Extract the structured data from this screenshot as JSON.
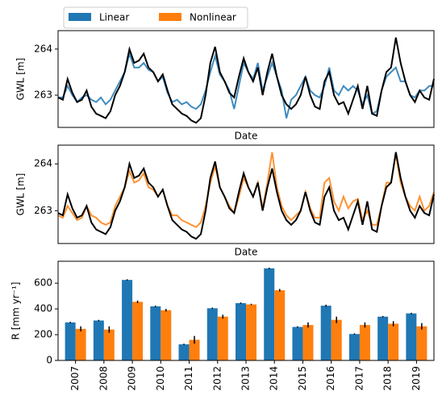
{
  "chart_data": [
    {
      "type": "line",
      "xlabel": "Date",
      "ylabel": "GWL [m]",
      "ylim": [
        262.3,
        264.4
      ],
      "yticks": [
        263,
        264
      ],
      "series": [
        {
          "color": "#1f77b4",
          "values": [
            262.95,
            262.95,
            263.2,
            263.0,
            262.85,
            262.95,
            263.0,
            262.9,
            262.85,
            262.95,
            262.8,
            262.9,
            263.1,
            263.3,
            263.5,
            263.9,
            263.6,
            263.6,
            263.7,
            263.55,
            263.5,
            263.3,
            263.4,
            263.05,
            262.85,
            262.9,
            262.8,
            262.85,
            262.75,
            262.7,
            262.8,
            263.1,
            263.5,
            263.85,
            263.45,
            263.3,
            263.1,
            262.7,
            263.2,
            263.7,
            263.5,
            263.35,
            263.7,
            263.1,
            263.4,
            263.7,
            263.4,
            263.1,
            262.5,
            262.9,
            263.0,
            263.2,
            263.4,
            263.1,
            263.0,
            262.95,
            263.2,
            263.6,
            263.1,
            263.0,
            263.2,
            263.1,
            263.2,
            263.1,
            262.8,
            263.0,
            262.6,
            262.65,
            263.1,
            263.4,
            263.5,
            263.6,
            263.3,
            263.3,
            263.0,
            262.95,
            263.1,
            263.1,
            263.2,
            263.2
          ]
        },
        {
          "color": "#000000",
          "values": [
            262.95,
            262.9,
            263.35,
            263.05,
            262.85,
            262.9,
            263.1,
            262.75,
            262.6,
            262.55,
            262.5,
            262.65,
            263.0,
            263.2,
            263.5,
            264.0,
            263.7,
            263.75,
            263.9,
            263.6,
            263.5,
            263.3,
            263.45,
            263.1,
            262.8,
            262.7,
            262.6,
            262.55,
            262.45,
            262.4,
            262.5,
            263.0,
            263.7,
            264.05,
            263.5,
            263.3,
            263.05,
            262.95,
            263.4,
            263.8,
            263.5,
            263.3,
            263.6,
            263.0,
            263.5,
            263.9,
            263.4,
            263.0,
            262.8,
            262.7,
            262.8,
            263.0,
            263.4,
            263.0,
            262.75,
            262.7,
            263.3,
            263.5,
            263.0,
            262.8,
            262.85,
            262.6,
            262.9,
            263.2,
            262.7,
            263.2,
            262.6,
            262.55,
            263.1,
            263.5,
            263.6,
            264.25,
            263.7,
            263.3,
            263.0,
            262.85,
            263.1,
            262.95,
            262.9,
            263.35
          ]
        }
      ]
    },
    {
      "type": "line",
      "xlabel": "Date",
      "ylabel": "GWL [m]",
      "ylim": [
        262.3,
        264.4
      ],
      "yticks": [
        263,
        264
      ],
      "series": [
        {
          "color": "#ff7f0e",
          "values": [
            262.9,
            262.85,
            263.1,
            262.95,
            262.8,
            262.85,
            263.1,
            262.9,
            262.85,
            262.75,
            262.7,
            262.75,
            263.1,
            263.3,
            263.5,
            263.85,
            263.6,
            263.65,
            263.8,
            263.5,
            263.45,
            263.3,
            263.45,
            263.1,
            262.9,
            262.9,
            262.8,
            262.75,
            262.7,
            262.65,
            262.75,
            263.1,
            263.6,
            263.95,
            263.5,
            263.3,
            263.1,
            262.95,
            263.3,
            263.7,
            263.5,
            263.3,
            263.6,
            263.05,
            263.6,
            264.25,
            263.5,
            263.1,
            262.9,
            262.8,
            262.9,
            263.0,
            263.4,
            263.05,
            262.85,
            262.85,
            263.6,
            263.7,
            263.2,
            263.0,
            263.3,
            263.05,
            263.2,
            263.25,
            262.8,
            263.0,
            262.7,
            262.7,
            263.1,
            263.6,
            263.6,
            264.2,
            263.6,
            263.3,
            263.1,
            263.0,
            263.3,
            263.0,
            263.1,
            263.4
          ]
        },
        {
          "color": "#000000",
          "values": [
            262.95,
            262.9,
            263.35,
            263.05,
            262.85,
            262.9,
            263.1,
            262.75,
            262.6,
            262.55,
            262.5,
            262.65,
            263.0,
            263.2,
            263.5,
            264.0,
            263.7,
            263.75,
            263.9,
            263.6,
            263.5,
            263.3,
            263.45,
            263.1,
            262.8,
            262.7,
            262.6,
            262.55,
            262.45,
            262.4,
            262.5,
            263.0,
            263.7,
            264.05,
            263.5,
            263.3,
            263.05,
            262.95,
            263.4,
            263.8,
            263.5,
            263.3,
            263.6,
            263.0,
            263.5,
            263.9,
            263.4,
            263.0,
            262.8,
            262.7,
            262.8,
            263.0,
            263.4,
            263.0,
            262.75,
            262.7,
            263.3,
            263.5,
            263.0,
            262.8,
            262.85,
            262.6,
            262.9,
            263.2,
            262.7,
            263.2,
            262.6,
            262.55,
            263.1,
            263.5,
            263.6,
            264.25,
            263.7,
            263.3,
            263.0,
            262.85,
            263.1,
            262.95,
            262.9,
            263.35
          ]
        }
      ]
    },
    {
      "type": "bar",
      "ylabel": "R [mm yr⁻¹]",
      "ylim": [
        0,
        770
      ],
      "yticks": [
        0,
        200,
        400,
        600
      ],
      "legend": "above",
      "categories": [
        "2007",
        "2008",
        "2009",
        "2010",
        "2011",
        "2012",
        "2013",
        "2014",
        "2015",
        "2016",
        "2017",
        "2018",
        "2019"
      ],
      "series": [
        {
          "name": "Linear",
          "color": "#1f77b4",
          "values": [
            295,
            310,
            625,
            420,
            125,
            405,
            445,
            715,
            260,
            425,
            205,
            340,
            365
          ],
          "errors": [
            5,
            5,
            5,
            5,
            5,
            5,
            5,
            5,
            5,
            8,
            5,
            5,
            5
          ]
        },
        {
          "name": "Nonlinear",
          "color": "#ff7f0e",
          "values": [
            245,
            240,
            455,
            390,
            160,
            340,
            435,
            545,
            275,
            315,
            275,
            285,
            265
          ],
          "errors": [
            20,
            25,
            10,
            10,
            30,
            15,
            5,
            10,
            20,
            25,
            20,
            20,
            25
          ]
        }
      ]
    }
  ]
}
